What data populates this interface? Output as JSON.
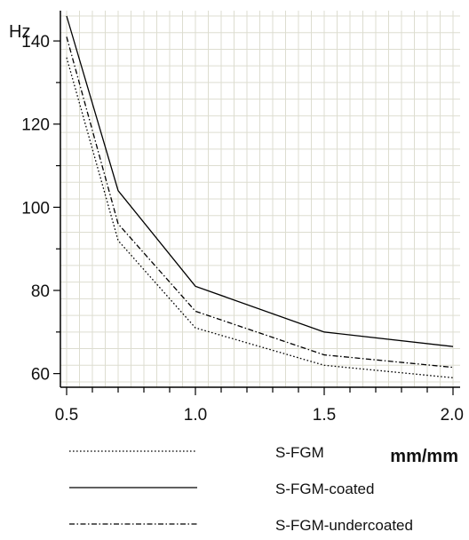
{
  "chart_data": {
    "type": "line",
    "ylabel": "Hz",
    "xlabel": "mm/mm",
    "xlim": [
      0.5,
      2.0
    ],
    "ylim": [
      58,
      146
    ],
    "x_ticks": [
      0.5,
      1.0,
      1.5,
      2.0
    ],
    "x_tick_labels": [
      "0.5",
      "1.0",
      "1.5",
      "2.0"
    ],
    "y_ticks": [
      60,
      80,
      100,
      120,
      140
    ],
    "y_tick_labels": [
      "60",
      "80",
      "100",
      "120",
      "140"
    ],
    "grid": true,
    "legend_position": "below",
    "x": [
      0.5,
      0.7,
      1.0,
      1.5,
      2.0
    ],
    "series": [
      {
        "name": "S-FGM",
        "values": [
          136,
          92,
          71,
          62,
          59
        ],
        "dash": "dotted"
      },
      {
        "name": "S-FGM-coated",
        "values": [
          146,
          104,
          81,
          70,
          66.5
        ],
        "dash": "solid"
      },
      {
        "name": "S-FGM-undercoated",
        "values": [
          141,
          96,
          75,
          64.5,
          61.5
        ],
        "dash": "dashdot"
      }
    ]
  }
}
